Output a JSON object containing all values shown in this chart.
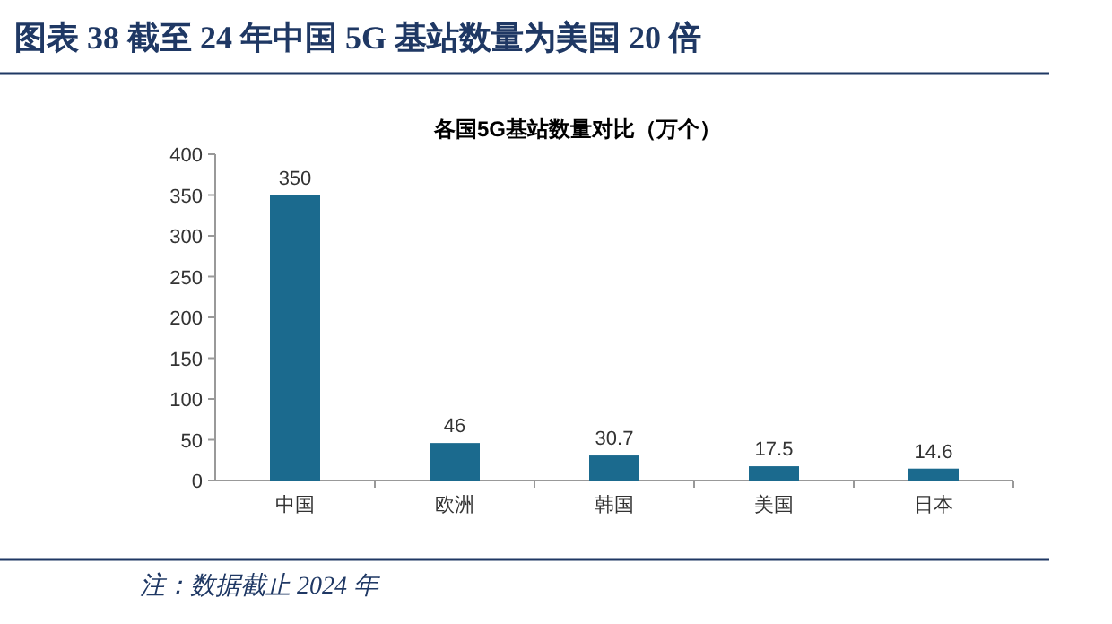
{
  "chart_data": {
    "type": "bar",
    "title": "图表 38   截至 24 年中国 5G 基站数量为美国 20 倍",
    "subtitle": "各国5G基站数量对比（万个）",
    "categories": [
      "中国",
      "欧洲",
      "韩国",
      "美国",
      "日本"
    ],
    "values": [
      350,
      46,
      30.7,
      17.5,
      14.6
    ],
    "color": "#1b6a8e",
    "ylim": [
      0,
      400
    ],
    "yticks": [
      0,
      50,
      100,
      150,
      200,
      250,
      300,
      350,
      400
    ],
    "data_labels": true,
    "annotations": [
      "注：数据截止 2024 年"
    ]
  }
}
